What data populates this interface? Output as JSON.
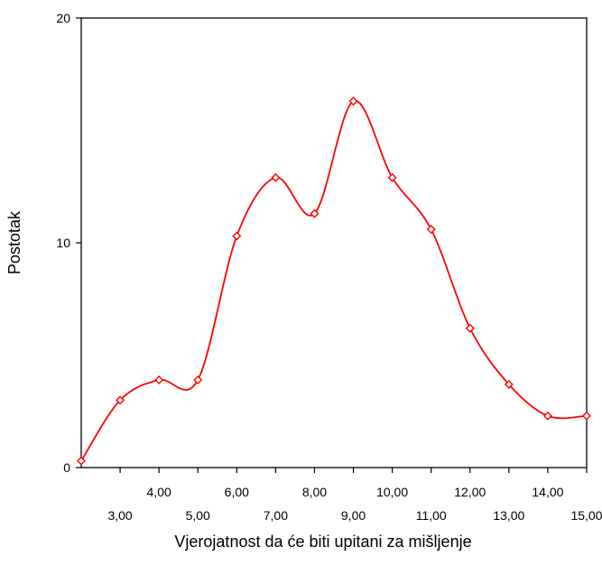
{
  "chart_data": {
    "type": "line",
    "title": "",
    "xlabel": "Vjerojatnost da će biti upitani za mišljenje",
    "ylabel": "Postotak",
    "xlim": [
      2,
      15
    ],
    "ylim": [
      0,
      20
    ],
    "grid": false,
    "legend": "none",
    "line_color": "#ff0000",
    "marker": "diamond",
    "x_ticks": [
      {
        "value": 3,
        "label": "3,00"
      },
      {
        "value": 4,
        "label": "4,00"
      },
      {
        "value": 5,
        "label": "5,00"
      },
      {
        "value": 6,
        "label": "6,00"
      },
      {
        "value": 7,
        "label": "7,00"
      },
      {
        "value": 8,
        "label": "8,00"
      },
      {
        "value": 9,
        "label": "9,00"
      },
      {
        "value": 10,
        "label": "10,00"
      },
      {
        "value": 11,
        "label": "11,00"
      },
      {
        "value": 12,
        "label": "12,00"
      },
      {
        "value": 13,
        "label": "13,00"
      },
      {
        "value": 14,
        "label": "14,00"
      },
      {
        "value": 15,
        "label": "15,00"
      }
    ],
    "y_ticks": [
      {
        "value": 0,
        "label": "0"
      },
      {
        "value": 10,
        "label": "10"
      },
      {
        "value": 20,
        "label": "20"
      }
    ],
    "series": [
      {
        "x": [
          2,
          3,
          4,
          5,
          6,
          7,
          8,
          9,
          10,
          11,
          12,
          13,
          14,
          15
        ],
        "y": [
          0.3,
          3.0,
          3.9,
          3.9,
          10.3,
          12.9,
          11.3,
          16.3,
          12.9,
          10.6,
          6.2,
          3.7,
          2.3,
          2.3
        ]
      }
    ]
  }
}
